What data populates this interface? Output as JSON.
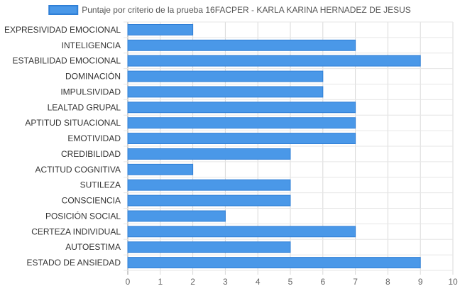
{
  "chart_data": {
    "type": "bar",
    "orientation": "horizontal",
    "categories": [
      "EXPRESIVIDAD EMOCIONAL",
      "INTELIGENCIA",
      "ESTABILIDAD EMOCIONAL",
      "DOMINACIÓN",
      "IMPULSIVIDAD",
      "LEALTAD GRUPAL",
      "APTITUD SITUACIONAL",
      "EMOTIVIDAD",
      "CREDIBILIDAD",
      "ACTITUD COGNITIVA",
      "SUTILEZA",
      "CONSCIENCIA",
      "POSICIÓN SOCIAL",
      "CERTEZA INDIVIDUAL",
      "AUTOESTIMA",
      "ESTADO DE ANSIEDAD"
    ],
    "series": [
      {
        "name": "Puntaje por criterio de la prueba 16FACPER - KARLA KARINA HERNADEZ DE JESUS",
        "values": [
          2,
          7,
          9,
          6,
          6,
          7,
          7,
          7,
          5,
          2,
          5,
          5,
          3,
          7,
          5,
          9
        ],
        "color": "#4a98e8",
        "border_color": "#2f7fd6"
      }
    ],
    "xlim": [
      0,
      10
    ],
    "x_ticks": [
      0,
      1,
      2,
      3,
      4,
      5,
      6,
      7,
      8,
      9,
      10
    ],
    "grid": true,
    "legend_position": "top-center"
  }
}
